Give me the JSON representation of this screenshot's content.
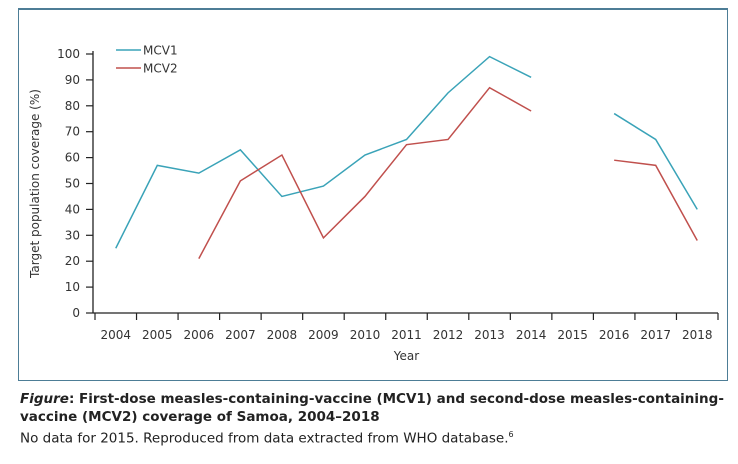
{
  "chart_data": {
    "type": "line",
    "xlabel": "Year",
    "ylabel": "Target population coverage (%)",
    "ylim": [
      0,
      100
    ],
    "yticks": [
      0,
      10,
      20,
      30,
      40,
      50,
      60,
      70,
      80,
      90,
      100
    ],
    "categories": [
      "2004",
      "2005",
      "2006",
      "2007",
      "2008",
      "2009",
      "2010",
      "2011",
      "2012",
      "2013",
      "2014",
      "2015",
      "2016",
      "2017",
      "2018"
    ],
    "legend_placement": "top-left",
    "series": [
      {
        "name": "MCV1",
        "color": "#3aa3b8",
        "values": [
          25,
          57,
          54,
          63,
          45,
          49,
          61,
          67,
          85,
          99,
          91,
          null,
          77,
          67,
          40
        ]
      },
      {
        "name": "MCV2",
        "color": "#c0504d",
        "values": [
          null,
          null,
          21,
          51,
          61,
          29,
          45,
          65,
          67,
          87,
          78,
          null,
          59,
          57,
          28
        ]
      }
    ]
  },
  "caption": {
    "label": "Figure",
    "title": ": First-dose measles-containing-vaccine (MCV1) and second-dose measles-containing-vaccine (MCV2) coverage of Samoa, 2004–2018",
    "note": "No data for 2015. Reproduced from data extracted from WHO database.",
    "ref": "6"
  }
}
